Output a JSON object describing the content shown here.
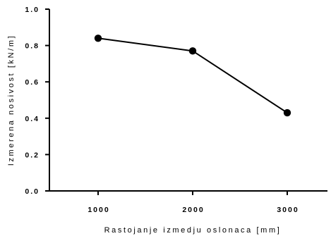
{
  "chart_data": {
    "type": "line",
    "title": "",
    "xlabel": "Rastojanje izmedju oslonaca [mm]",
    "ylabel": "Izmerena nosivost [kN/m]",
    "x_tick_labels": [
      "1000",
      "2000",
      "3000"
    ],
    "y_tick_labels": [
      "0.0",
      "0.2",
      "0.4",
      "0.6",
      "0.8",
      "1.0"
    ],
    "ylim": [
      0,
      1.0
    ],
    "grid": false,
    "series": [
      {
        "x": [
          1000,
          2000,
          3000
        ],
        "y": [
          0.84,
          0.77,
          0.43
        ]
      }
    ]
  }
}
